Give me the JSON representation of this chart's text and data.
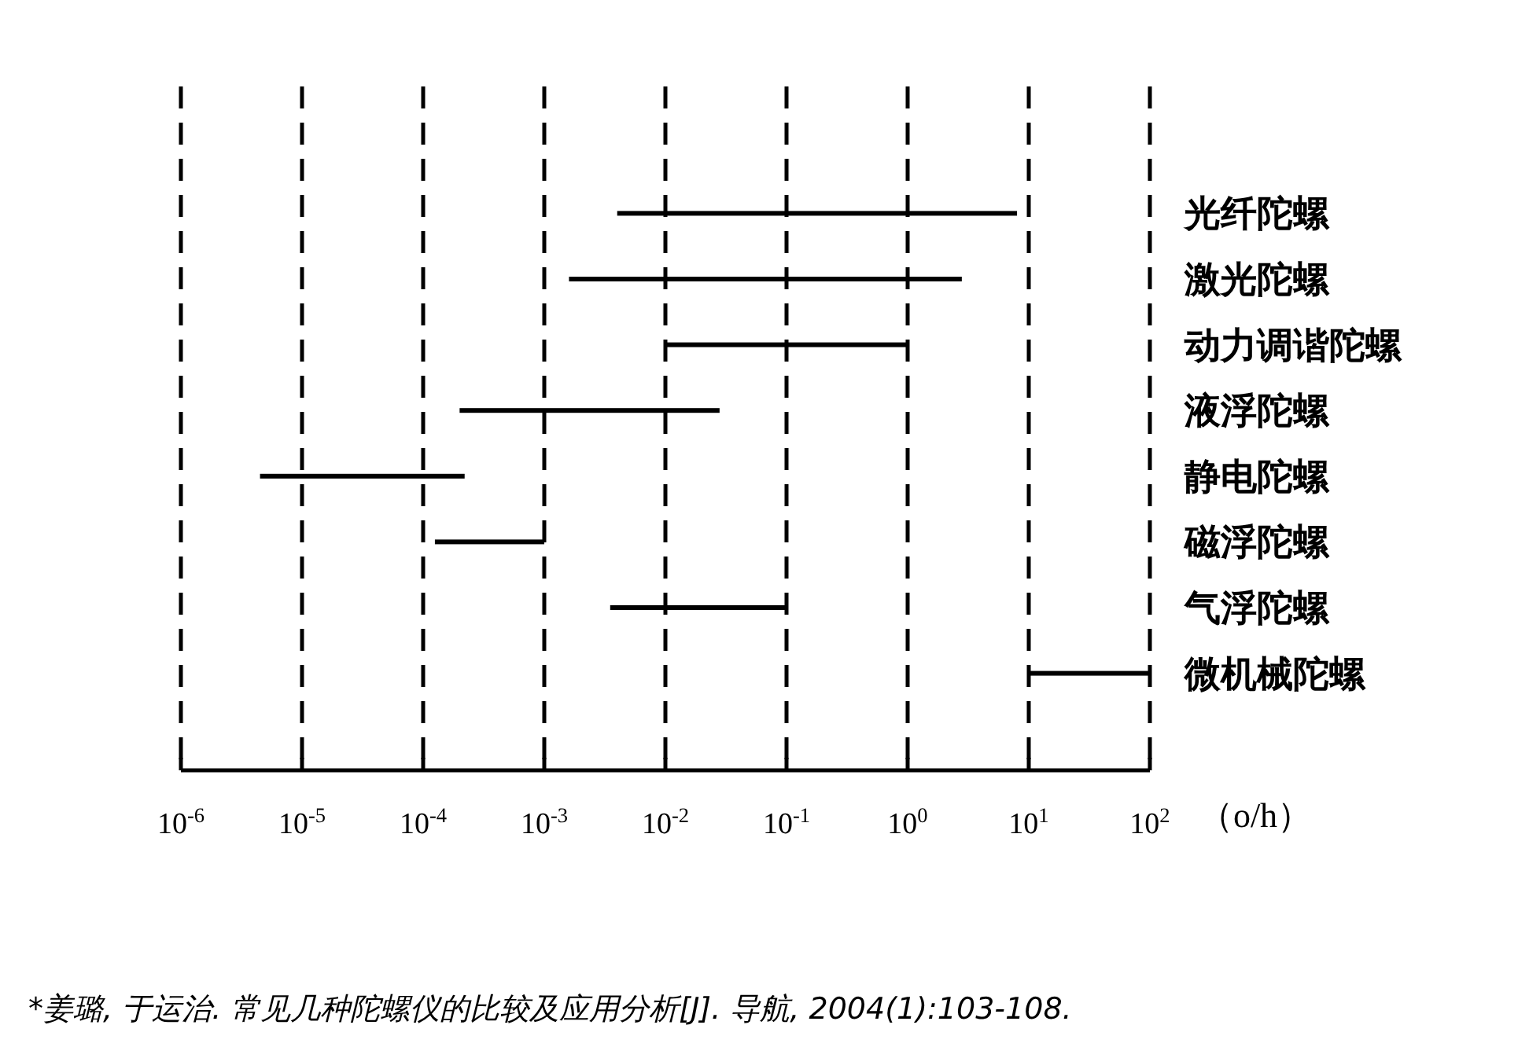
{
  "chart_data": {
    "type": "bar",
    "orientation": "horizontal",
    "log": "x",
    "categories": [
      "光纤陀螺",
      "激光陀螺",
      "动力调谐陀螺",
      "液浮陀螺",
      "静电陀螺",
      "磁浮陀螺",
      "气浮陀螺",
      "微机械陀螺"
    ],
    "base": [
      0.004,
      0.0016,
      0.01,
      0.0002,
      4.5e-06,
      0.000125,
      0.0035,
      10
    ],
    "values": [
      7.996,
      2.7984,
      0.99,
      0.0278,
      0.0002155,
      0.000875,
      0.0965,
      90
    ],
    "color": "#000000",
    "xlim": [
      1e-06,
      100
    ],
    "xticks": [
      {
        "value": 1e-06,
        "label": "10$^{-6}$"
      },
      {
        "value": 1e-05,
        "label": "10$^{-5}$"
      },
      {
        "value": 0.0001,
        "label": "10$^{-4}$"
      },
      {
        "value": 0.001,
        "label": "10$^{-3}$"
      },
      {
        "value": 0.01,
        "label": "10$^{-2}$"
      },
      {
        "value": 0.1,
        "label": "10$^{-1}$"
      },
      {
        "value": 1,
        "label": "10$^{0}$"
      },
      {
        "value": 10,
        "label": "10$^{1}$"
      },
      {
        "value": 100,
        "label": "10$^{2}$"
      }
    ],
    "xlabel": "（o/h）",
    "grid": "x",
    "line_style": "dashed",
    "annotations": [
      "*姜璐, 于运治. 常见几种陀螺仪的比较及应用分析[J]. 导航, 2004(1):103-108."
    ]
  }
}
